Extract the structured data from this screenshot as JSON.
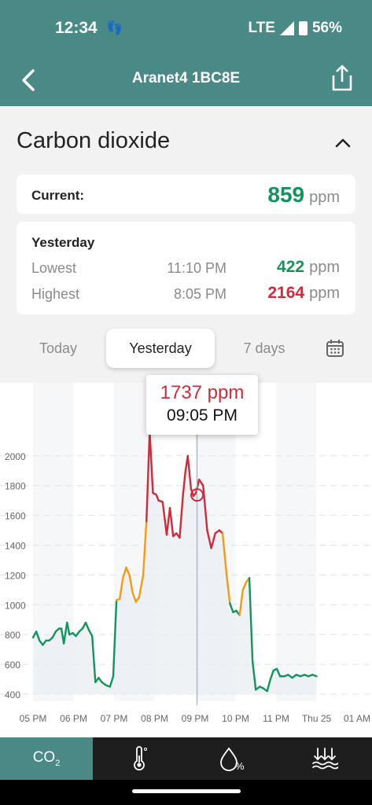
{
  "status_bar": {
    "time": "12:34",
    "network": "LTE",
    "battery": "56%"
  },
  "app_bar": {
    "title": "Aranet4 1BC8E"
  },
  "section": {
    "title": "Carbon dioxide"
  },
  "current": {
    "label": "Current:",
    "value": "859",
    "unit": "ppm"
  },
  "yesterday": {
    "heading": "Yesterday",
    "lowest": {
      "label": "Lowest",
      "time": "11:10 PM",
      "value": "422",
      "unit": "ppm"
    },
    "highest": {
      "label": "Highest",
      "time": "8:05 PM",
      "value": "2164",
      "unit": "ppm"
    }
  },
  "tabs": [
    "Today",
    "Yesterday",
    "7 days"
  ],
  "active_tab": "Yesterday",
  "tooltip": {
    "value": "1737 ppm",
    "time": "09:05 PM"
  },
  "bottom_nav": {
    "co2_label": "CO",
    "co2_sub": "2",
    "items": [
      "co2-icon",
      "thermometer-icon",
      "humidity-icon",
      "pressure-icon"
    ]
  },
  "colors": {
    "accent": "#4a8a86",
    "good": "#12945a",
    "warn": "#f39c12",
    "bad": "#d12a3a"
  },
  "chart_data": {
    "type": "line",
    "x_tick_labels": [
      "05 PM",
      "06 PM",
      "07 PM",
      "08 PM",
      "09 PM",
      "10 PM",
      "11 PM",
      "Thu 25",
      "01 AM"
    ],
    "y_ticks": [
      400,
      600,
      800,
      1000,
      1200,
      1400,
      1600,
      1800,
      2000
    ],
    "ylim": [
      400,
      2000
    ],
    "xlim": [
      0,
      8
    ],
    "thresholds": {
      "warn": 1000,
      "bad": 1400
    },
    "series": [
      {
        "x": [
          0.0,
          0.08,
          0.16,
          0.24,
          0.32,
          0.4,
          0.48,
          0.56,
          0.64,
          0.7,
          0.76,
          0.84,
          0.9,
          0.98,
          1.06,
          1.14,
          1.22,
          1.3,
          1.38,
          1.46,
          1.54,
          1.62,
          1.7,
          1.8,
          1.9,
          1.98,
          2.06,
          2.14,
          2.22,
          2.3,
          2.38,
          2.46,
          2.54,
          2.62,
          2.72,
          2.8,
          2.88,
          2.96,
          3.04,
          3.1,
          3.2,
          3.3,
          3.38,
          3.46,
          3.54,
          3.62,
          3.7,
          3.76,
          3.82,
          3.9,
          3.96,
          4.02,
          4.1,
          4.2,
          4.3,
          4.4,
          4.5,
          4.6,
          4.68,
          4.78,
          4.86,
          4.94,
          5.02,
          5.1,
          5.18,
          5.26,
          5.34,
          5.42,
          5.5,
          5.6,
          5.68,
          5.78,
          5.86,
          5.94,
          6.02,
          6.1,
          6.2,
          6.3,
          6.4,
          6.5,
          6.6,
          6.7,
          6.8,
          6.9,
          7.0
        ],
        "y": [
          780,
          820,
          760,
          730,
          760,
          760,
          780,
          820,
          840,
          840,
          740,
          880,
          800,
          810,
          790,
          820,
          840,
          880,
          830,
          790,
          480,
          510,
          480,
          460,
          450,
          520,
          1030,
          1040,
          1180,
          1250,
          1200,
          1080,
          1020,
          1050,
          1200,
          1560,
          2164,
          1750,
          1740,
          1700,
          1690,
          1470,
          1650,
          1460,
          1480,
          1450,
          1730,
          1890,
          2000,
          1780,
          1730,
          1750,
          1840,
          1800,
          1500,
          1380,
          1480,
          1500,
          1480,
          1200,
          1010,
          950,
          960,
          930,
          1100,
          1150,
          1180,
          620,
          430,
          450,
          440,
          420,
          500,
          560,
          570,
          520,
          520,
          530,
          510,
          530,
          520,
          530,
          520,
          530,
          520
        ]
      }
    ],
    "highlight": {
      "x": 4.05,
      "y": 1737
    }
  }
}
